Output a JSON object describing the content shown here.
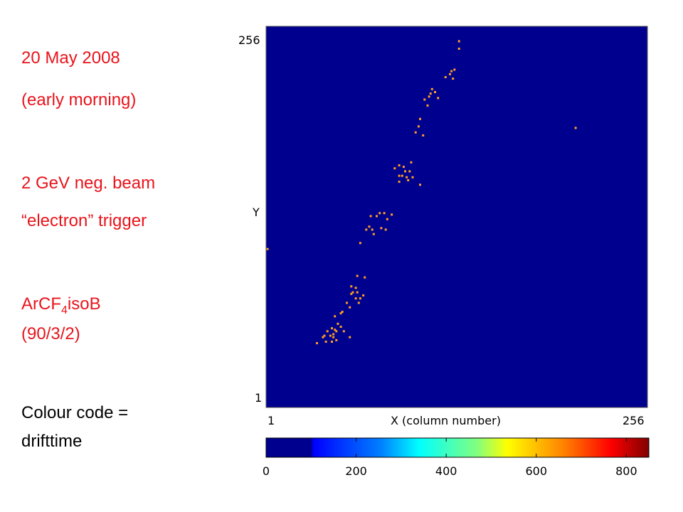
{
  "notes": {
    "date": "20 May 2008",
    "time_of_day": "(early morning)",
    "beam": "2 GeV neg. beam",
    "trigger": "“electron” trigger",
    "gas_prefix": "ArCF",
    "gas_subscript": "4",
    "gas_suffix": "isoB",
    "gas_mix": "(90/3/2)",
    "colour_code_line1": "Colour code =",
    "colour_code_line2": "drifttime"
  },
  "colors": {
    "notes_red": "#e8141c",
    "plot_background": "#00008f",
    "hit_color": "#ffa020"
  },
  "chart_data": {
    "type": "scatter",
    "xlabel": "X (column number)",
    "ylabel": "Y",
    "xlim": [
      1,
      256
    ],
    "ylim": [
      1,
      256
    ],
    "x_tick_labels": [
      "1",
      "256"
    ],
    "y_tick_labels": [
      "256",
      "1"
    ],
    "colorbar": {
      "range": [
        0,
        850
      ],
      "tick_values": [
        0,
        200,
        400,
        600,
        800
      ],
      "tick_labels": [
        "0",
        "200",
        "400",
        "600",
        "800"
      ]
    },
    "points": [
      [
        130,
        246
      ],
      [
        130,
        241
      ],
      [
        124,
        224
      ],
      [
        125,
        226
      ],
      [
        127,
        227
      ],
      [
        121,
        222
      ],
      [
        126,
        221
      ],
      [
        112,
        214
      ],
      [
        110,
        209
      ],
      [
        114,
        212
      ],
      [
        116,
        208
      ],
      [
        111,
        211
      ],
      [
        107,
        207
      ],
      [
        109,
        203
      ],
      [
        104,
        194
      ],
      [
        103,
        189
      ],
      [
        101,
        185
      ],
      [
        106,
        183
      ],
      [
        90,
        163
      ],
      [
        87,
        161
      ],
      [
        90,
        152
      ],
      [
        96,
        153
      ],
      [
        90,
        156
      ],
      [
        92,
        156
      ],
      [
        94,
        159
      ],
      [
        93,
        162
      ],
      [
        98,
        165
      ],
      [
        104,
        150
      ],
      [
        99,
        155
      ],
      [
        95,
        155
      ],
      [
        97,
        159
      ],
      [
        208,
        188
      ],
      [
        71,
        129
      ],
      [
        75,
        129
      ],
      [
        77,
        131
      ],
      [
        80,
        131
      ],
      [
        82,
        127
      ],
      [
        85,
        130
      ],
      [
        68,
        120
      ],
      [
        72,
        120
      ],
      [
        70,
        122
      ],
      [
        78,
        121
      ],
      [
        81,
        120
      ],
      [
        73,
        117
      ],
      [
        64,
        111
      ],
      [
        2,
        107
      ],
      [
        62,
        89
      ],
      [
        67,
        88
      ],
      [
        58,
        82
      ],
      [
        61,
        81
      ],
      [
        62,
        78
      ],
      [
        59,
        78
      ],
      [
        66,
        76
      ],
      [
        58,
        77
      ],
      [
        63,
        71
      ],
      [
        64,
        74
      ],
      [
        61,
        74
      ],
      [
        57,
        68
      ],
      [
        51,
        64
      ],
      [
        47,
        62
      ],
      [
        49,
        57
      ],
      [
        51,
        55
      ],
      [
        45,
        54
      ],
      [
        46,
        50
      ],
      [
        42,
        52
      ],
      [
        44,
        49
      ],
      [
        48,
        46
      ],
      [
        41,
        45
      ],
      [
        55,
        71
      ],
      [
        46,
        48
      ],
      [
        53,
        52
      ],
      [
        45,
        45
      ],
      [
        47,
        53
      ],
      [
        52,
        65
      ],
      [
        57,
        48
      ],
      [
        40,
        49
      ],
      [
        39,
        48
      ],
      [
        35,
        44
      ],
      [
        48,
        52
      ]
    ]
  }
}
